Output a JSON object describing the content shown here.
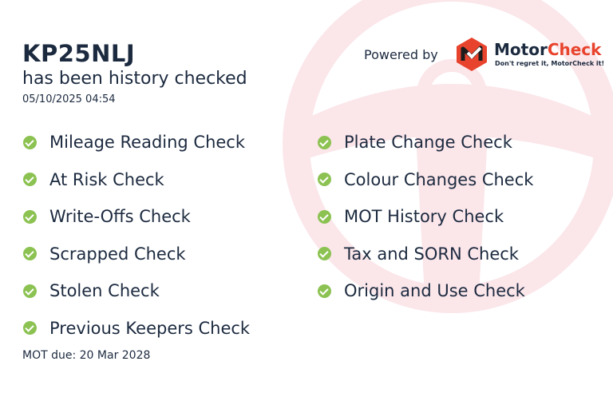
{
  "plate": "KP25NLJ",
  "subtitle": "has been history checked",
  "datetime": "05/10/2025 04:54",
  "powered_by": "Powered by",
  "brand": {
    "name_part1": "Motor",
    "name_part2": "Check",
    "tagline": "Don't regret it, MotorCheck it!",
    "accent": "#e8432d"
  },
  "checks_left": [
    "Mileage Reading Check",
    "At Risk Check",
    "Write-Offs Check",
    "Scrapped Check",
    "Stolen Check",
    "Previous Keepers Check"
  ],
  "checks_right": [
    "Plate Change Check",
    "Colour Changes Check",
    "MOT History Check",
    "Tax and SORN Check",
    "Origin and Use Check"
  ],
  "check_icon": "check-circle-icon",
  "check_color": "#8cc252",
  "mot_due": "MOT due: 20 Mar 2028"
}
